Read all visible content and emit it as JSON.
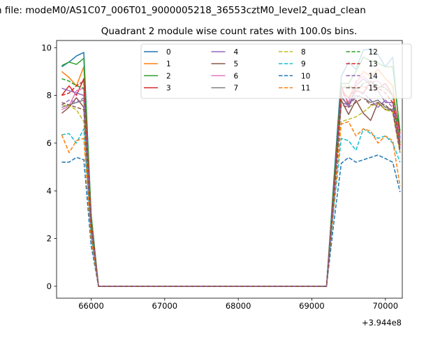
{
  "chart_data": {
    "type": "line",
    "title": "Quadrant 2 module wise count rates with 100.0s bins.",
    "suptitle": "n file: modeM0/AS1C07_006T01_9000005218_36553cztM0_level2_quad_clean",
    "xlabel": "",
    "ylabel": "",
    "x_offset_label": "+3.944e8",
    "xlim": [
      65530,
      70230
    ],
    "ylim": [
      -0.5,
      10.3
    ],
    "xticks": [
      66000,
      67000,
      68000,
      69000,
      70000
    ],
    "xtick_labels": [
      "66000",
      "67000",
      "68000",
      "69000",
      "70000"
    ],
    "yticks": [
      0,
      2,
      4,
      6,
      8,
      10
    ],
    "ytick_labels": [
      "0",
      "2",
      "4",
      "6",
      "8",
      "10"
    ],
    "grid": false,
    "legend_position": "top-center",
    "legend_columns": 4,
    "x": [
      65600,
      65700,
      65800,
      65900,
      66000,
      66100,
      69200,
      69300,
      69400,
      69500,
      69600,
      69700,
      69800,
      69900,
      70000,
      70100,
      70200
    ],
    "series": [
      {
        "name": "0",
        "color": "#1f77b4",
        "dash": "solid",
        "values": [
          9.2,
          9.4,
          9.65,
          9.8,
          3.0,
          0,
          0,
          4.5,
          8.8,
          9.4,
          9.1,
          9.9,
          9.95,
          9.7,
          9.2,
          9.6,
          6.2
        ]
      },
      {
        "name": "1",
        "color": "#ff7f0e",
        "dash": "solid",
        "values": [
          9.0,
          8.75,
          8.4,
          9.2,
          2.8,
          0,
          0,
          4.2,
          8.2,
          7.9,
          8.5,
          9.0,
          8.8,
          9.1,
          8.7,
          8.4,
          6.0
        ]
      },
      {
        "name": "2",
        "color": "#2ca02c",
        "dash": "solid",
        "values": [
          9.25,
          9.4,
          9.3,
          9.55,
          3.0,
          0,
          0,
          4.3,
          8.5,
          8.5,
          9.0,
          9.6,
          9.45,
          9.35,
          9.2,
          9.2,
          6.5
        ]
      },
      {
        "name": "3",
        "color": "#d62728",
        "dash": "solid",
        "values": [
          8.0,
          8.4,
          8.0,
          8.7,
          2.7,
          0,
          0,
          4.1,
          8.4,
          7.6,
          8.2,
          8.1,
          8.6,
          8.3,
          8.5,
          8.0,
          6.4
        ]
      },
      {
        "name": "4",
        "color": "#9467bd",
        "dash": "solid",
        "values": [
          8.3,
          8.2,
          8.1,
          8.0,
          2.6,
          0,
          0,
          4.0,
          8.0,
          7.5,
          8.4,
          8.7,
          8.45,
          8.2,
          7.7,
          7.7,
          6.2
        ]
      },
      {
        "name": "5",
        "color": "#8c564b",
        "dash": "solid",
        "values": [
          7.25,
          7.5,
          7.9,
          7.5,
          2.4,
          0,
          0,
          3.8,
          7.8,
          7.2,
          7.8,
          7.25,
          6.95,
          7.7,
          7.4,
          7.4,
          5.8
        ]
      },
      {
        "name": "6",
        "color": "#e377c2",
        "dash": "solid",
        "values": [
          7.4,
          7.55,
          8.2,
          8.3,
          2.6,
          0,
          0,
          3.9,
          8.2,
          7.7,
          8.6,
          8.8,
          8.55,
          8.6,
          8.3,
          8.0,
          6.1
        ]
      },
      {
        "name": "7",
        "color": "#7f7f7f",
        "dash": "solid",
        "values": [
          7.5,
          7.6,
          7.7,
          7.8,
          2.5,
          0,
          0,
          3.9,
          7.9,
          7.6,
          8.0,
          7.9,
          7.7,
          7.8,
          7.5,
          7.4,
          5.9
        ]
      },
      {
        "name": "8",
        "color": "#bcbd22",
        "dash": "dashed",
        "values": [
          7.6,
          7.55,
          7.4,
          6.9,
          2.2,
          0,
          0,
          3.6,
          6.9,
          7.0,
          7.1,
          7.3,
          7.55,
          7.65,
          7.4,
          7.3,
          5.6
        ]
      },
      {
        "name": "9",
        "color": "#17becf",
        "dash": "dashed",
        "values": [
          6.35,
          6.4,
          6.0,
          6.6,
          2.1,
          0,
          0,
          3.3,
          6.2,
          6.1,
          5.7,
          6.6,
          6.4,
          6.2,
          6.3,
          6.0,
          5.2
        ]
      },
      {
        "name": "10",
        "color": "#1f77b4",
        "dash": "dashed",
        "values": [
          5.2,
          5.2,
          5.4,
          5.3,
          1.7,
          0,
          0,
          2.7,
          5.15,
          5.4,
          5.2,
          5.3,
          5.4,
          5.5,
          5.35,
          5.2,
          3.95
        ]
      },
      {
        "name": "11",
        "color": "#ff7f0e",
        "dash": "dashed",
        "values": [
          6.35,
          5.6,
          6.1,
          6.2,
          2.0,
          0,
          0,
          3.4,
          6.8,
          6.9,
          6.3,
          6.6,
          6.5,
          6.0,
          6.3,
          6.1,
          4.2
        ]
      },
      {
        "name": "12",
        "color": "#2ca02c",
        "dash": "dashed",
        "values": [
          8.7,
          8.6,
          8.4,
          8.3,
          2.7,
          0,
          0,
          4.1,
          8.3,
          8.4,
          8.2,
          8.5,
          8.6,
          8.4,
          8.3,
          8.0,
          6.0
        ]
      },
      {
        "name": "13",
        "color": "#d62728",
        "dash": "dashed",
        "values": [
          8.0,
          8.1,
          8.4,
          8.6,
          2.7,
          0,
          0,
          4.0,
          8.1,
          7.9,
          8.3,
          8.4,
          8.2,
          8.3,
          8.1,
          7.7,
          5.9
        ]
      },
      {
        "name": "14",
        "color": "#9467bd",
        "dash": "dashed",
        "values": [
          7.6,
          7.8,
          7.7,
          7.9,
          2.5,
          0,
          0,
          3.8,
          7.7,
          7.6,
          7.9,
          8.1,
          7.8,
          7.5,
          7.8,
          7.5,
          5.7
        ]
      },
      {
        "name": "15",
        "color": "#8c564b",
        "dash": "dashed",
        "values": [
          7.7,
          7.6,
          7.5,
          7.4,
          2.4,
          0,
          0,
          3.7,
          7.6,
          7.5,
          7.7,
          7.9,
          7.6,
          7.7,
          7.6,
          7.3,
          5.6
        ]
      }
    ]
  }
}
